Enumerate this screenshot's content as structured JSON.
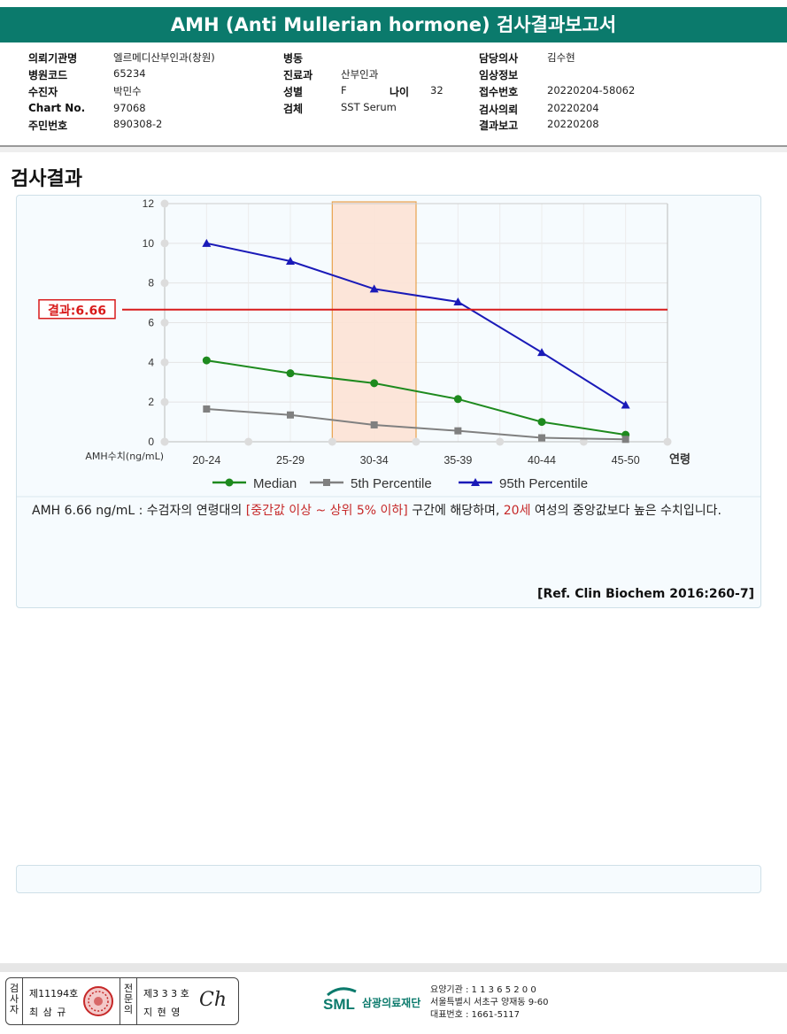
{
  "header": {
    "title": "AMH (Anti Mullerian hormone) 검사결과보고서"
  },
  "patient_info": {
    "col1": [
      {
        "label": "의뢰기관명",
        "value": "엘르메디산부인과(창원)"
      },
      {
        "label": "병원코드",
        "value": "65234"
      },
      {
        "label": "수진자",
        "value": "박민수"
      },
      {
        "label": "Chart No.",
        "value": "97068"
      },
      {
        "label": "주민번호",
        "value": "890308-2"
      }
    ],
    "col2": [
      {
        "label": "병동",
        "value": ""
      },
      {
        "label": "진료과",
        "value": "산부인과"
      },
      {
        "label": "성별",
        "value": "F"
      },
      {
        "label": "검체",
        "value": "SST Serum"
      }
    ],
    "age": {
      "label": "나이",
      "value": "32"
    },
    "col3": [
      {
        "label": "담당의사",
        "value": "김수현"
      },
      {
        "label": "임상정보",
        "value": ""
      },
      {
        "label": "접수번호",
        "value": "20220204-58062"
      },
      {
        "label": "검사의뢰",
        "value": "20220204"
      },
      {
        "label": "결과보고",
        "value": "20220208"
      }
    ]
  },
  "section_title": "검사결과",
  "chart_data": {
    "type": "line",
    "categories": [
      "20-24",
      "25-29",
      "30-34",
      "35-39",
      "40-44",
      "45-50"
    ],
    "xlabel": "연령",
    "ylabel": "AMH수치(ng/mL)",
    "ylim": [
      0,
      12
    ],
    "yticks": [
      0,
      2,
      4,
      6,
      8,
      10,
      12
    ],
    "grid": true,
    "legend_position": "bottom",
    "highlight_category": "30-34",
    "result_line": {
      "label": "결과:6.66",
      "value": 6.66,
      "color": "#d81b1b"
    },
    "series": [
      {
        "name": "Median",
        "color": "#1e8a1e",
        "marker": "circle",
        "values": [
          4.1,
          3.45,
          2.95,
          2.15,
          1.0,
          0.35
        ]
      },
      {
        "name": "5th Percentile",
        "color": "#808080",
        "marker": "square",
        "values": [
          1.65,
          1.35,
          0.85,
          0.55,
          0.2,
          0.12
        ]
      },
      {
        "name": "95th Percentile",
        "color": "#1a1ab8",
        "marker": "triangle",
        "values": [
          10.0,
          9.1,
          7.7,
          7.05,
          4.5,
          1.85
        ]
      }
    ]
  },
  "result": {
    "prefix": "AMH  6.66 ng/mL : 수검자의 연령대의 ",
    "range": "[중간값 이상 ~ 상위 5% 이하]",
    "middle": "  구간에 해당하며, ",
    "age": "20세",
    "suffix": " 여성의 중앙값보다 높은 수치입니다.",
    "reference": "[Ref. Clin Biochem 2016:260-7]"
  },
  "footer": {
    "inspector_label": "검사자",
    "inspector_no": "제11194호",
    "inspector_name": "최 삼 규",
    "reviewer_label": "전문의",
    "reviewer_no": "제3 3 3 호",
    "reviewer_name": "지 현 영",
    "signature": "Ch",
    "org_logo": "SML",
    "org_name": "삼광의료재단",
    "org_code": "요양기관 : 1 1 3 6 5 2 0 0",
    "org_address": "서울특별시 서초구 양재동 9-60",
    "org_phone": "대표번호 : 1661-5117"
  }
}
